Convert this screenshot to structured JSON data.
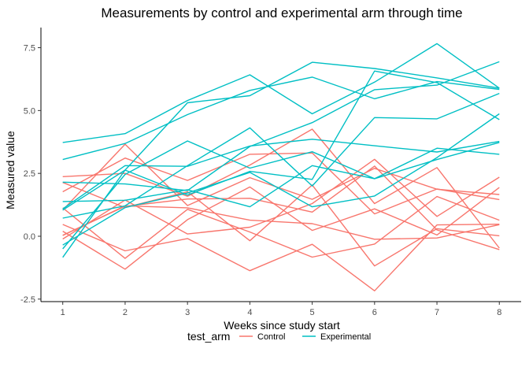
{
  "chart_data": {
    "type": "line",
    "title": "Measurements by control and experimental arm through time",
    "xlabel": "Weeks since study start",
    "ylabel": "Measured value",
    "x": [
      1,
      2,
      3,
      4,
      5,
      6,
      7,
      8
    ],
    "xlim": [
      0.65,
      8.35
    ],
    "ylim": [
      -2.6,
      8.3
    ],
    "x_ticks": [
      "1",
      "2",
      "3",
      "4",
      "5",
      "6",
      "7",
      "8"
    ],
    "y_ticks": [
      "-2.5",
      "0.0",
      "2.5",
      "5.0",
      "7.5"
    ],
    "y_tick_values": [
      -2.5,
      0,
      2.5,
      5,
      7.5
    ],
    "grid": false,
    "legend": {
      "title": "test_arm",
      "position": "bottom",
      "entries": [
        {
          "label": "Control",
          "color": "#F8766D"
        },
        {
          "label": "Experimental",
          "color": "#00BFC4"
        }
      ]
    },
    "series": [
      {
        "group": "Control",
        "values": [
          0.2,
          -1.31,
          0.66,
          1.96,
          0.23,
          1.09,
          0.05,
          1.94
        ]
      },
      {
        "group": "Control",
        "values": [
          1.13,
          -0.88,
          1.07,
          0.17,
          -0.83,
          -0.31,
          1.58,
          0.64
        ]
      },
      {
        "group": "Control",
        "values": [
          1.77,
          3.11,
          2.22,
          3.26,
          3.31,
          0.89,
          1.88,
          1.46
        ]
      },
      {
        "group": "Control",
        "values": [
          1.04,
          3.66,
          1.22,
          2.33,
          1.47,
          2.7,
          1.87,
          1.66
        ]
      },
      {
        "group": "Control",
        "values": [
          0.47,
          -0.58,
          -0.09,
          -1.37,
          -0.32,
          -2.17,
          0.45,
          0.48
        ]
      },
      {
        "group": "Control",
        "values": [
          2.37,
          2.5,
          1.59,
          2.83,
          4.26,
          1.3,
          2.73,
          -0.47
        ]
      },
      {
        "group": "Control",
        "values": [
          0.03,
          1.21,
          1.13,
          0.64,
          0.5,
          -0.12,
          -0.07,
          0.46
        ]
      },
      {
        "group": "Control",
        "values": [
          -0.11,
          1.44,
          0.09,
          0.36,
          1.3,
          3.06,
          0.79,
          2.35
        ]
      },
      {
        "group": "Control",
        "values": [
          2.14,
          1.14,
          1.77,
          -0.18,
          2.04,
          -1.18,
          0.3,
          0.02
        ]
      },
      {
        "group": "Control",
        "values": [
          0.04,
          1.19,
          1.48,
          1.51,
          0.96,
          2.79,
          0.25,
          -0.53
        ]
      },
      {
        "group": "Experimental",
        "values": [
          3.05,
          3.69,
          4.84,
          5.8,
          6.33,
          5.47,
          6.15,
          5.84
        ]
      },
      {
        "group": "Experimental",
        "values": [
          -0.84,
          2.63,
          1.64,
          2.58,
          2.26,
          6.57,
          6.11,
          4.64
        ]
      },
      {
        "group": "Experimental",
        "values": [
          2.15,
          2.08,
          1.82,
          3.57,
          4.52,
          5.83,
          6.01,
          6.94
        ]
      },
      {
        "group": "Experimental",
        "values": [
          3.73,
          4.08,
          5.4,
          6.42,
          4.87,
          6.13,
          7.66,
          5.89
        ]
      },
      {
        "group": "Experimental",
        "values": [
          -0.5,
          2.46,
          3.79,
          2.71,
          3.36,
          2.29,
          3.5,
          3.26
        ]
      },
      {
        "group": "Experimental",
        "values": [
          0.72,
          1.21,
          2.81,
          4.31,
          2.0,
          4.72,
          4.67,
          5.68
        ]
      },
      {
        "group": "Experimental",
        "values": [
          -0.35,
          1.14,
          1.72,
          2.54,
          1.17,
          1.6,
          3.13,
          4.87
        ]
      },
      {
        "group": "Experimental",
        "values": [
          1.09,
          2.81,
          2.78,
          3.59,
          3.86,
          3.6,
          3.35,
          3.77
        ]
      },
      {
        "group": "Experimental",
        "values": [
          1.04,
          2.63,
          5.31,
          5.59,
          6.92,
          6.67,
          6.3,
          5.89
        ]
      },
      {
        "group": "Experimental",
        "values": [
          1.38,
          1.43,
          1.85,
          1.17,
          2.81,
          2.29,
          3.05,
          3.73
        ]
      }
    ]
  }
}
